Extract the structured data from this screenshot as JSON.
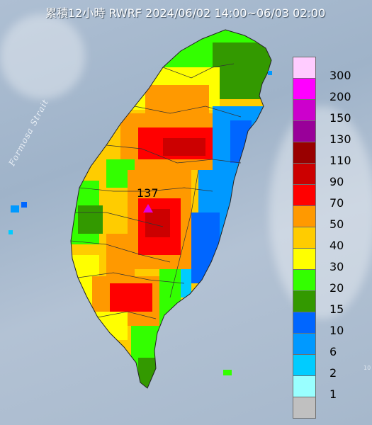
{
  "title": "累積12小時 RWRF 2024/06/02 14:00~06/03 02:00",
  "sea_label": "Formosa Strait",
  "max_point": {
    "value": "137",
    "marker_color": "#e000e0"
  },
  "edge_mark": "10",
  "legend": [
    {
      "label": "300",
      "color": "#ffccff"
    },
    {
      "label": "200",
      "color": "#ff00ff"
    },
    {
      "label": "150",
      "color": "#cc00cc"
    },
    {
      "label": "130",
      "color": "#990099"
    },
    {
      "label": "110",
      "color": "#990000"
    },
    {
      "label": "90",
      "color": "#cc0000"
    },
    {
      "label": "70",
      "color": "#ff0000"
    },
    {
      "label": "50",
      "color": "#ff9900"
    },
    {
      "label": "40",
      "color": "#ffcc00"
    },
    {
      "label": "30",
      "color": "#ffff00"
    },
    {
      "label": "20",
      "color": "#33ff00"
    },
    {
      "label": "15",
      "color": "#339900"
    },
    {
      "label": "10",
      "color": "#0066ff"
    },
    {
      "label": "6",
      "color": "#0099ff"
    },
    {
      "label": "2",
      "color": "#00ccff"
    },
    {
      "label": "1",
      "color": "#99ffff"
    },
    {
      "label": "",
      "color": "#c0c0c0"
    }
  ]
}
